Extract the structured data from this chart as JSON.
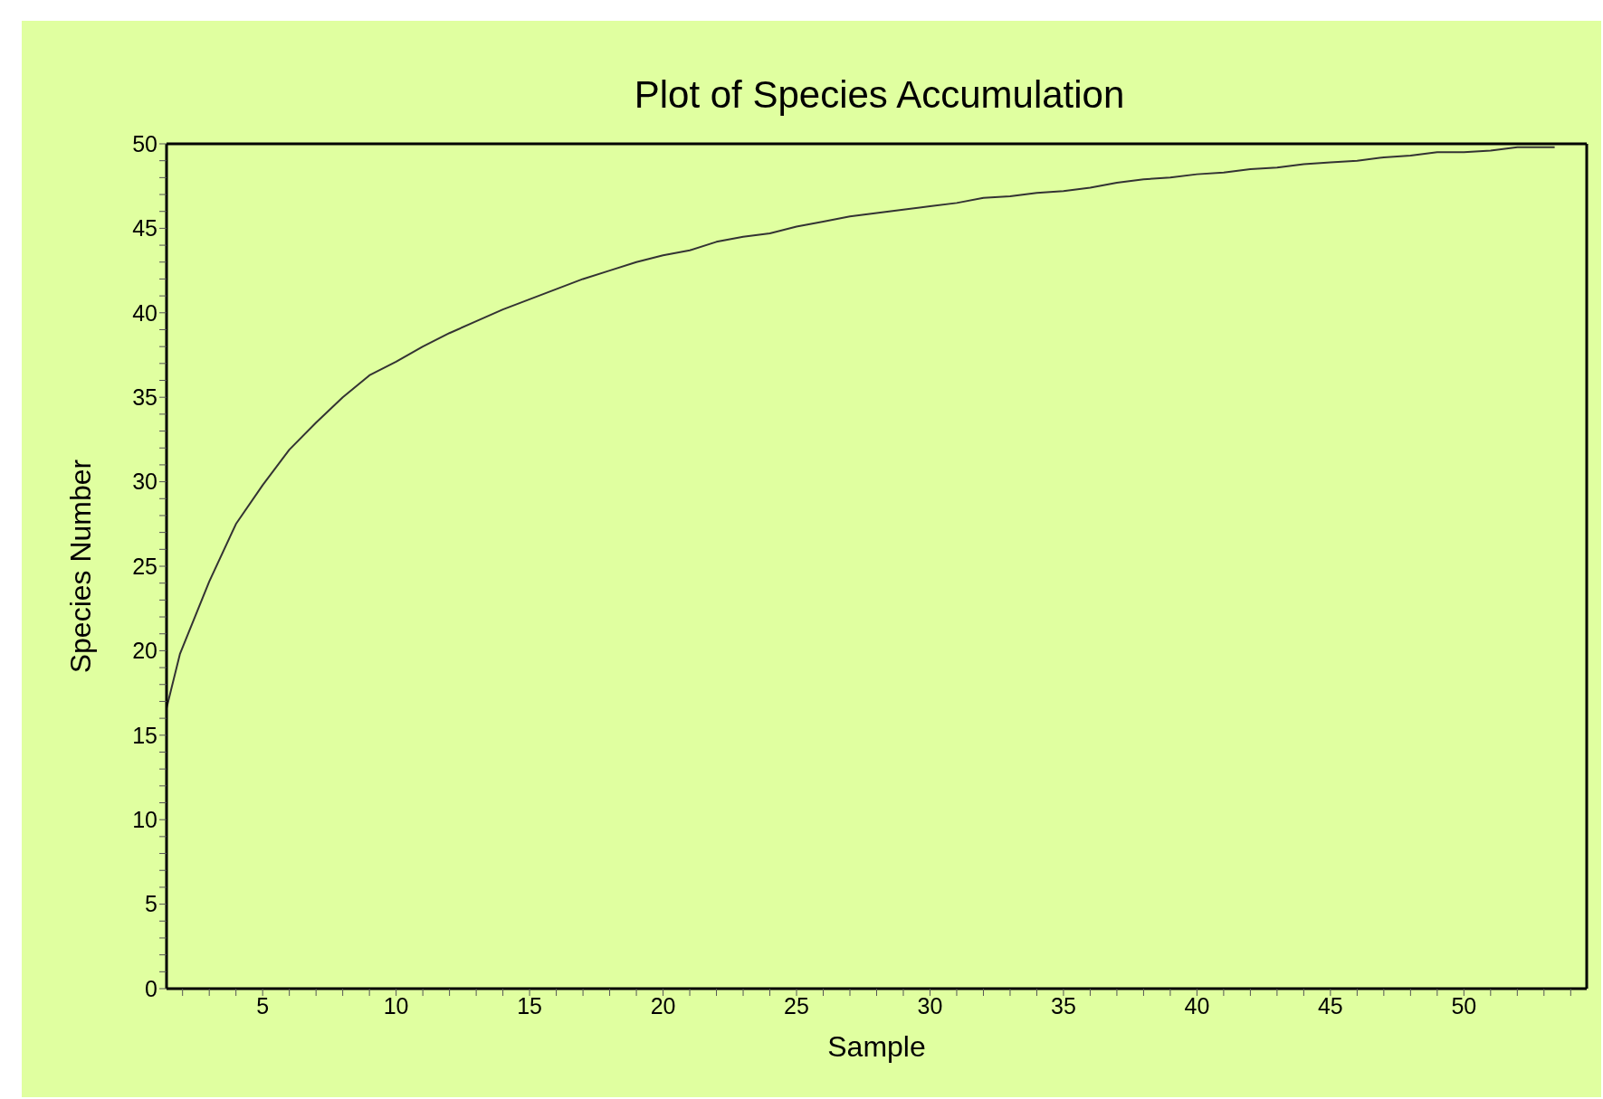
{
  "chart_data": {
    "type": "line",
    "title": "Plot of Species Accumulation",
    "xlabel": "Sample",
    "ylabel": "Species Number",
    "x": [
      1.4,
      1.9,
      3,
      4,
      5,
      6,
      7,
      8,
      9,
      10,
      11,
      12,
      13,
      14,
      15,
      16,
      17,
      18,
      19,
      20,
      21,
      22,
      23,
      24,
      25,
      26,
      27,
      28,
      29,
      30,
      31,
      32,
      33,
      34,
      35,
      36,
      37,
      38,
      39,
      40,
      41,
      42,
      43,
      44,
      45,
      46,
      47,
      48,
      49,
      50,
      51,
      52,
      53,
      53.4
    ],
    "series": [
      {
        "color": "#333333",
        "values": [
          16.6,
          19.8,
          24.1,
          27.5,
          29.8,
          31.9,
          33.5,
          35.0,
          36.3,
          37.1,
          38.0,
          38.8,
          39.5,
          40.2,
          40.8,
          41.4,
          42.0,
          42.5,
          43.0,
          43.4,
          43.7,
          44.2,
          44.5,
          44.7,
          45.1,
          45.4,
          45.7,
          45.9,
          46.1,
          46.3,
          46.5,
          46.8,
          46.9,
          47.1,
          47.2,
          47.4,
          47.7,
          47.9,
          48.0,
          48.2,
          48.3,
          48.5,
          48.6,
          48.8,
          48.9,
          49.0,
          49.2,
          49.3,
          49.5,
          49.5,
          49.6,
          49.8,
          49.8,
          49.8
        ]
      }
    ],
    "xlim": [
      1.4,
      54.6
    ],
    "xticks": [
      {
        "value": 2,
        "label": null
      },
      {
        "value": 3,
        "label": null
      },
      {
        "value": 4,
        "label": null
      },
      5,
      {
        "value": 6,
        "label": null
      },
      {
        "value": 7,
        "label": null
      },
      {
        "value": 8,
        "label": null
      },
      {
        "value": 9,
        "label": null
      },
      10,
      {
        "value": 11,
        "label": null
      },
      {
        "value": 12,
        "label": null
      },
      {
        "value": 13,
        "label": null
      },
      {
        "value": 14,
        "label": null
      },
      15,
      {
        "value": 16,
        "label": null
      },
      {
        "value": 17,
        "label": null
      },
      {
        "value": 18,
        "label": null
      },
      {
        "value": 19,
        "label": null
      },
      20,
      {
        "value": 21,
        "label": null
      },
      {
        "value": 22,
        "label": null
      },
      {
        "value": 23,
        "label": null
      },
      {
        "value": 24,
        "label": null
      },
      25,
      {
        "value": 26,
        "label": null
      },
      {
        "value": 27,
        "label": null
      },
      {
        "value": 28,
        "label": null
      },
      {
        "value": 29,
        "label": null
      },
      30,
      {
        "value": 31,
        "label": null
      },
      {
        "value": 32,
        "label": null
      },
      {
        "value": 33,
        "label": null
      },
      {
        "value": 34,
        "label": null
      },
      35,
      {
        "value": 36,
        "label": null
      },
      {
        "value": 37,
        "label": null
      },
      {
        "value": 38,
        "label": null
      },
      {
        "value": 39,
        "label": null
      },
      40,
      {
        "value": 41,
        "label": null
      },
      {
        "value": 42,
        "label": null
      },
      {
        "value": 43,
        "label": null
      },
      {
        "value": 44,
        "label": null
      },
      45,
      {
        "value": 46,
        "label": null
      },
      {
        "value": 47,
        "label": null
      },
      {
        "value": 48,
        "label": null
      },
      {
        "value": 49,
        "label": null
      },
      50,
      {
        "value": 51,
        "label": null
      },
      {
        "value": 52,
        "label": null
      },
      {
        "value": 53,
        "label": null
      },
      {
        "value": 54,
        "label": null
      }
    ],
    "ylim": [
      0,
      50
    ],
    "yticks": [
      0,
      {
        "value": 1,
        "label": null
      },
      {
        "value": 2,
        "label": null
      },
      {
        "value": 3,
        "label": null
      },
      {
        "value": 4,
        "label": null
      },
      5,
      {
        "value": 6,
        "label": null
      },
      {
        "value": 7,
        "label": null
      },
      {
        "value": 8,
        "label": null
      },
      {
        "value": 9,
        "label": null
      },
      10,
      {
        "value": 11,
        "label": null
      },
      {
        "value": 12,
        "label": null
      },
      {
        "value": 13,
        "label": null
      },
      {
        "value": 14,
        "label": null
      },
      15,
      {
        "value": 16,
        "label": null
      },
      {
        "value": 17,
        "label": null
      },
      {
        "value": 18,
        "label": null
      },
      {
        "value": 19,
        "label": null
      },
      20,
      {
        "value": 21,
        "label": null
      },
      {
        "value": 22,
        "label": null
      },
      {
        "value": 23,
        "label": null
      },
      {
        "value": 24,
        "label": null
      },
      25,
      {
        "value": 26,
        "label": null
      },
      {
        "value": 27,
        "label": null
      },
      {
        "value": 28,
        "label": null
      },
      {
        "value": 29,
        "label": null
      },
      30,
      {
        "value": 31,
        "label": null
      },
      {
        "value": 32,
        "label": null
      },
      {
        "value": 33,
        "label": null
      },
      {
        "value": 34,
        "label": null
      },
      35,
      {
        "value": 36,
        "label": null
      },
      {
        "value": 37,
        "label": null
      },
      {
        "value": 38,
        "label": null
      },
      {
        "value": 39,
        "label": null
      },
      40,
      {
        "value": 41,
        "label": null
      },
      {
        "value": 42,
        "label": null
      },
      {
        "value": 43,
        "label": null
      },
      {
        "value": 44,
        "label": null
      },
      45,
      {
        "value": 46,
        "label": null
      },
      {
        "value": 47,
        "label": null
      },
      {
        "value": 48,
        "label": null
      },
      {
        "value": 49,
        "label": null
      },
      50
    ],
    "grid": false,
    "legend": false,
    "marker": "none",
    "line_style": "solid"
  }
}
